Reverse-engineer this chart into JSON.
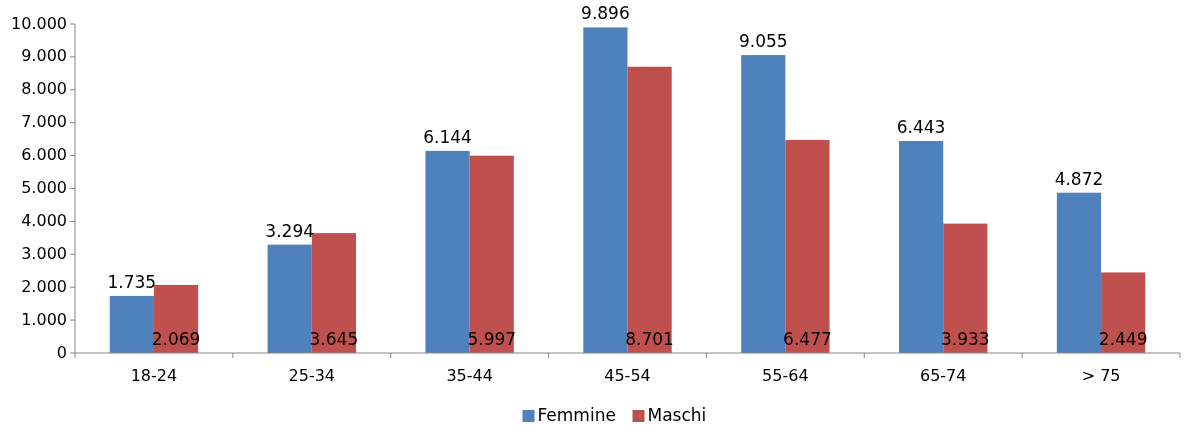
{
  "chart_data": {
    "type": "bar",
    "categories": [
      "18-24",
      "25-34",
      "35-44",
      "45-54",
      "55-64",
      "65-74",
      "> 75"
    ],
    "series": [
      {
        "name": "Femmine",
        "color": "#4f81bd",
        "values": [
          1735,
          3294,
          6144,
          9896,
          9055,
          6443,
          4872
        ],
        "value_labels": [
          "1.735",
          "3.294",
          "6.144",
          "9.896",
          "9.055",
          "6.443",
          "4.872"
        ]
      },
      {
        "name": "Maschi",
        "color": "#c0504d",
        "values": [
          2069,
          3645,
          5997,
          8701,
          6477,
          3933,
          2449
        ],
        "value_labels": [
          "2.069",
          "3.645",
          "5.997",
          "8.701",
          "6.477",
          "3.933",
          "2.449"
        ]
      }
    ],
    "ylim": [
      0,
      10000
    ],
    "yticks": [
      {
        "value": 0,
        "label": "0"
      },
      {
        "value": 1000,
        "label": "1.000"
      },
      {
        "value": 2000,
        "label": "2.000"
      },
      {
        "value": 3000,
        "label": "3.000"
      },
      {
        "value": 4000,
        "label": "4.000"
      },
      {
        "value": 5000,
        "label": "5.000"
      },
      {
        "value": 6000,
        "label": "6.000"
      },
      {
        "value": 7000,
        "label": "7.000"
      },
      {
        "value": 8000,
        "label": "8.000"
      },
      {
        "value": 9000,
        "label": "9.000"
      },
      {
        "value": 10000,
        "label": "10.000"
      }
    ],
    "legend": "bottom"
  }
}
